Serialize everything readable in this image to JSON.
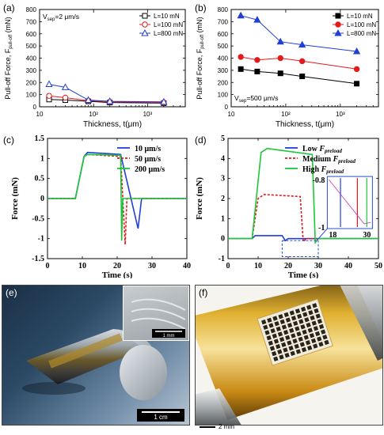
{
  "panels": {
    "a": {
      "letter": "(a)",
      "condition": "V",
      "condition_sub": "sep",
      "condition_rest": "=2 μm/s"
    },
    "b": {
      "letter": "(b)",
      "condition": "V",
      "condition_sub": "sep",
      "condition_rest": "=500 μm/s"
    },
    "c": {
      "letter": "(c)"
    },
    "d": {
      "letter": "(d)"
    },
    "e": {
      "letter": "(e)",
      "scalebar_main": "1 cm",
      "scalebar_inset": "1 mm"
    },
    "f": {
      "letter": "(f)",
      "scalebar": "2 mm"
    }
  },
  "colors": {
    "black": "#000000",
    "red": "#e31a1c",
    "blue": "#1f3fd6",
    "green": "#19c83a",
    "inset_border": "#2b4fd6"
  },
  "chart_data": [
    {
      "id": "a",
      "type": "line",
      "xlabel": "Thickness, t(μm)",
      "ylabel": "Pull-off Force, F",
      "ylabel_sub": "pull-off",
      "ylabel_unit": " (mN)",
      "xscale": "log",
      "xlim": [
        10,
        5000
      ],
      "ylim": [
        0,
        800
      ],
      "xticks": [
        "10",
        "10²",
        "10³"
      ],
      "yticks": [
        "0",
        "100",
        "200",
        "300",
        "400",
        "500",
        "600",
        "700",
        "800"
      ],
      "legend": "top-right",
      "series": [
        {
          "name": "L=10 mN",
          "color": "#000000",
          "marker": "square-open",
          "x": [
            15,
            30,
            80,
            200,
            2000
          ],
          "y": [
            60,
            55,
            45,
            35,
            30
          ]
        },
        {
          "name": "L=100 mN",
          "color": "#e31a1c",
          "marker": "circle-open",
          "x": [
            15,
            30,
            80,
            200,
            2000
          ],
          "y": [
            90,
            75,
            50,
            40,
            35
          ]
        },
        {
          "name": "L=800 mN",
          "color": "#1f3fd6",
          "marker": "triangle-open",
          "x": [
            15,
            30,
            80,
            200,
            2000
          ],
          "y": [
            185,
            160,
            55,
            45,
            40
          ]
        }
      ]
    },
    {
      "id": "b",
      "type": "line",
      "xlabel": "Thickness, t(μm)",
      "ylabel": "Pull-off Force, F",
      "ylabel_sub": "pull-off",
      "ylabel_unit": " (mN)",
      "xscale": "log",
      "xlim": [
        10,
        5000
      ],
      "ylim": [
        0,
        800
      ],
      "xticks": [
        "10",
        "10²",
        "10³"
      ],
      "yticks": [
        "0",
        "100",
        "200",
        "300",
        "400",
        "500",
        "600",
        "700",
        "800"
      ],
      "legend": "top-right",
      "series": [
        {
          "name": "L=10 mN",
          "color": "#000000",
          "marker": "square",
          "x": [
            15,
            30,
            80,
            200,
            2000
          ],
          "y": [
            310,
            290,
            275,
            250,
            190
          ]
        },
        {
          "name": "L=100 mN",
          "color": "#e31a1c",
          "marker": "circle",
          "x": [
            15,
            30,
            80,
            200,
            2000
          ],
          "y": [
            410,
            385,
            400,
            375,
            310
          ]
        },
        {
          "name": "L=800 mN",
          "color": "#1f3fd6",
          "marker": "triangle",
          "x": [
            15,
            30,
            80,
            200,
            2000
          ],
          "y": [
            750,
            715,
            535,
            510,
            455
          ]
        }
      ]
    },
    {
      "id": "c",
      "type": "line",
      "xlabel": "Time (s)",
      "ylabel": "Force (mN)",
      "xlim": [
        0,
        40
      ],
      "ylim": [
        -1.5,
        1.5
      ],
      "xticks": [
        "0",
        "10",
        "20",
        "30",
        "40"
      ],
      "yticks": [
        "-1.5",
        "-1",
        "-0.5",
        "0",
        "0.5",
        "1",
        "1.5"
      ],
      "legend": "top-right",
      "series": [
        {
          "name": "10 μm/s",
          "color": "#1f3fd6",
          "style": "solid",
          "x": [
            0,
            8,
            10.5,
            11.5,
            21,
            26,
            27,
            40
          ],
          "y": [
            0,
            0,
            1.05,
            1.15,
            1.1,
            -0.75,
            0,
            0
          ]
        },
        {
          "name": "50 μm/s",
          "color": "#e31a1c",
          "style": "dashed",
          "x": [
            0,
            8,
            10.5,
            11.5,
            21,
            22.3,
            22.8,
            40
          ],
          "y": [
            0,
            0,
            1.05,
            1.1,
            1.05,
            -1.15,
            0,
            0
          ]
        },
        {
          "name": "200 μm/s",
          "color": "#19c83a",
          "style": "solid",
          "x": [
            0,
            8,
            10.5,
            11.5,
            21,
            21.3,
            21.6,
            40
          ],
          "y": [
            0,
            0,
            1.05,
            1.1,
            1.08,
            -1.05,
            0,
            0
          ]
        }
      ]
    },
    {
      "id": "d",
      "type": "line",
      "xlabel": "Time (s)",
      "ylabel": "Force (mN)",
      "xlim": [
        0,
        50
      ],
      "ylim": [
        -1,
        5
      ],
      "xticks": [
        "0",
        "10",
        "20",
        "30",
        "40",
        "50"
      ],
      "yticks": [
        "-1",
        "0",
        "1",
        "2",
        "3",
        "4",
        "5"
      ],
      "legend": "top-right",
      "inset_labels": {
        "top": "-0.8",
        "bottom": "-1",
        "x_left": "18",
        "x_right": "30"
      },
      "series": [
        {
          "name": "Low ",
          "name_italic": "F",
          "name_sub": "preload",
          "color": "#1f3fd6",
          "style": "solid",
          "x": [
            0,
            8,
            9,
            18,
            19,
            20,
            50
          ],
          "y": [
            0,
            0,
            0.15,
            0.15,
            -0.1,
            0,
            0
          ]
        },
        {
          "name": "Medium ",
          "name_italic": "F",
          "name_sub": "preload",
          "color": "#e31a1c",
          "style": "dashed",
          "x": [
            0,
            8,
            10,
            12,
            24,
            25,
            26,
            50
          ],
          "y": [
            0,
            0,
            2.0,
            2.2,
            2.1,
            -0.15,
            0,
            0
          ]
        },
        {
          "name": "High ",
          "name_italic": "F",
          "name_sub": "preload",
          "color": "#19c83a",
          "style": "solid",
          "x": [
            0,
            8,
            11,
            13,
            28,
            29,
            30,
            50
          ],
          "y": [
            0,
            0,
            4.3,
            4.5,
            4.2,
            -0.2,
            0,
            0
          ]
        }
      ]
    }
  ]
}
